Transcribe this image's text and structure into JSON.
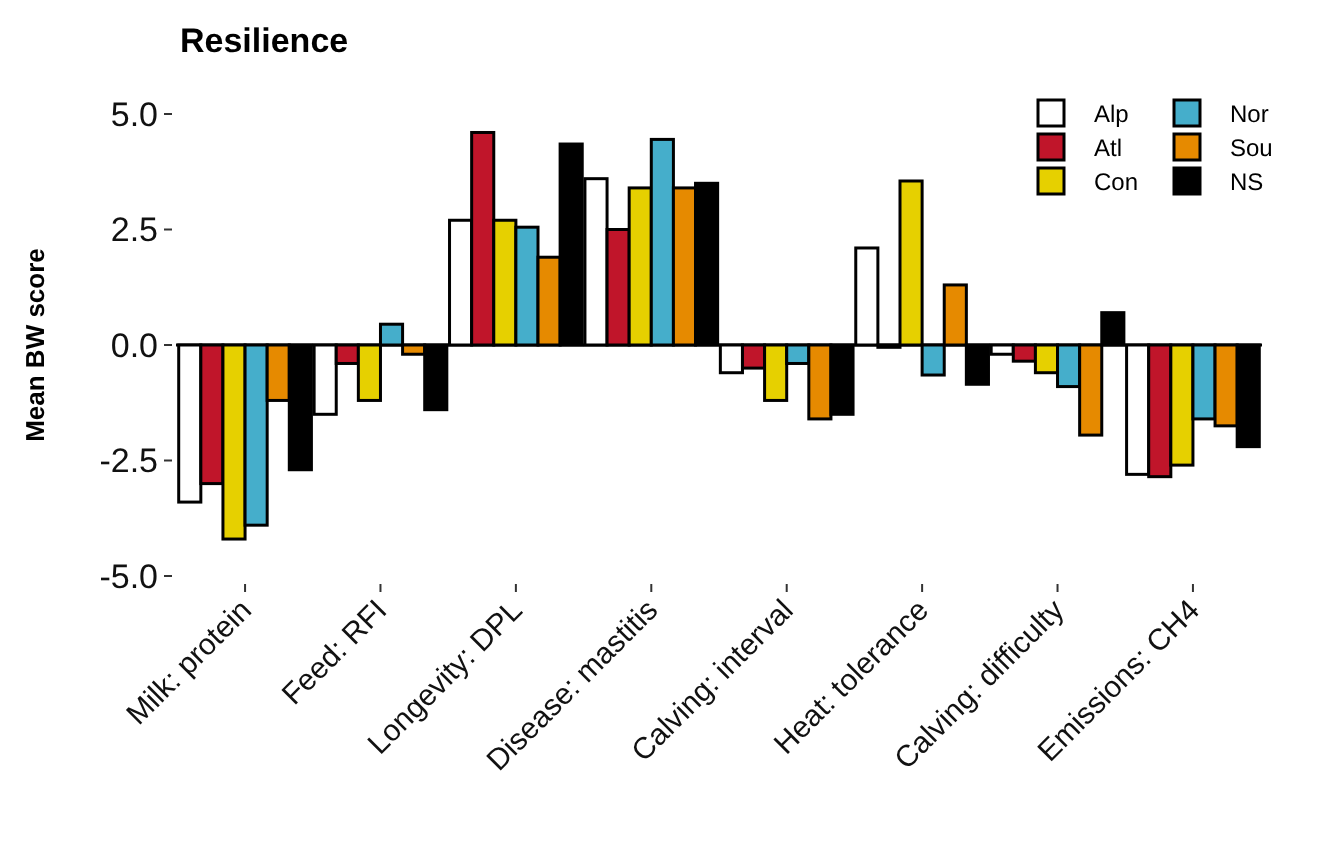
{
  "chart_data": {
    "type": "bar",
    "title": "Resilience",
    "ylabel": "Mean BW score",
    "categories": [
      "Milk: protein",
      "Feed: RFI",
      "Longevity: DPL",
      "Disease: mastitis",
      "Calving: interval",
      "Heat: tolerance",
      "Calving: difficulty",
      "Emissions: CH4"
    ],
    "series": [
      {
        "name": "Alp",
        "color": "#ffffff",
        "values": [
          -3.4,
          -1.5,
          2.7,
          3.6,
          -0.6,
          2.1,
          -0.2,
          -2.8
        ]
      },
      {
        "name": "Atl",
        "color": "#c0152a",
        "values": [
          -3.0,
          -0.4,
          4.6,
          2.5,
          -0.5,
          -0.05,
          -0.35,
          -2.85
        ]
      },
      {
        "name": "Con",
        "color": "#e6d000",
        "values": [
          -4.2,
          -1.2,
          2.7,
          3.4,
          -1.2,
          3.55,
          -0.6,
          -2.6
        ]
      },
      {
        "name": "Nor",
        "color": "#45aecb",
        "values": [
          -3.9,
          0.45,
          2.55,
          4.45,
          -0.4,
          -0.65,
          -0.9,
          -1.6
        ]
      },
      {
        "name": "Sou",
        "color": "#e68a00",
        "values": [
          -1.2,
          -0.2,
          1.9,
          3.4,
          -1.6,
          1.3,
          -1.95,
          -1.75
        ]
      },
      {
        "name": "NS",
        "color": "#000000",
        "values": [
          -2.7,
          -1.4,
          4.35,
          3.5,
          -1.5,
          -0.85,
          0.7,
          -2.2
        ]
      }
    ],
    "ylim": [
      -5,
      5
    ],
    "yticks": [
      {
        "value": -5,
        "label": "-5.0"
      },
      {
        "value": -2.5,
        "label": "-2.5"
      },
      {
        "value": 0,
        "label": "0.0"
      },
      {
        "value": 2.5,
        "label": "2.5"
      },
      {
        "value": 5,
        "label": "5.0"
      }
    ],
    "legend": "top right"
  }
}
